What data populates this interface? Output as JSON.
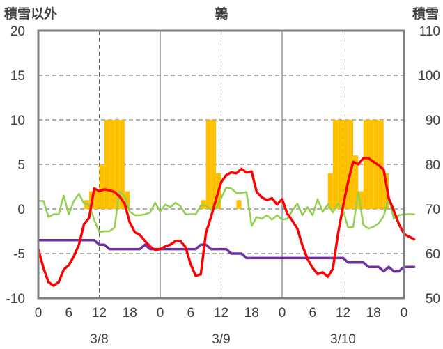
{
  "chart_data": {
    "type": "line",
    "title": "鶉",
    "ylabel_left": "積雪以外",
    "ylabel_right": "積雪",
    "y_left": {
      "min": -10,
      "max": 20,
      "ticks": [
        20,
        15,
        10,
        5,
        0,
        -5,
        -10
      ]
    },
    "y_right": {
      "min": 50,
      "max": 110,
      "ticks": [
        110,
        100,
        90,
        80,
        70,
        60,
        50
      ]
    },
    "x_hours": {
      "min": 0,
      "max": 72
    },
    "x_tick_labels": [
      "0",
      "6",
      "12",
      "18",
      "0",
      "6",
      "12",
      "18",
      "0",
      "6",
      "12",
      "18",
      "0"
    ],
    "day_labels": [
      "3/8",
      "3/9",
      "3/10"
    ],
    "grid": true,
    "colors": {
      "precip": "#FFC000",
      "temperature": "#FF0000",
      "wind": "#92D050",
      "snow_depth": "#7030A0",
      "axis": "#808080",
      "grid": "#606060"
    },
    "series": [
      {
        "kind": "bar",
        "values": [
          {
            "x": 9,
            "y": 1
          },
          {
            "x": 10,
            "y": 2
          },
          {
            "x": 11,
            "y": 2
          },
          {
            "x": 12,
            "y": 5
          },
          {
            "x": 13,
            "y": 10
          },
          {
            "x": 14,
            "y": 10
          },
          {
            "x": 15,
            "y": 10
          },
          {
            "x": 16,
            "y": 10
          },
          {
            "x": 17,
            "y": 2
          },
          {
            "x": 32,
            "y": 1
          },
          {
            "x": 33,
            "y": 10
          },
          {
            "x": 34,
            "y": 10
          },
          {
            "x": 35,
            "y": 4
          },
          {
            "x": 39,
            "y": 1
          },
          {
            "x": 57,
            "y": 4
          },
          {
            "x": 58,
            "y": 10
          },
          {
            "x": 59,
            "y": 10
          },
          {
            "x": 60,
            "y": 10
          },
          {
            "x": 61,
            "y": 10
          },
          {
            "x": 62,
            "y": 6
          },
          {
            "x": 63,
            "y": 2
          },
          {
            "x": 64,
            "y": 10
          },
          {
            "x": 65,
            "y": 10
          },
          {
            "x": 66,
            "y": 10
          },
          {
            "x": 67,
            "y": 10
          },
          {
            "x": 68,
            "y": 4
          }
        ]
      },
      {
        "kind": "line",
        "axis": "left",
        "values": [
          [
            0,
            -4.5
          ],
          [
            1,
            -6.6
          ],
          [
            2,
            -8.2
          ],
          [
            3,
            -8.6
          ],
          [
            4,
            -8.2
          ],
          [
            5,
            -6.8
          ],
          [
            6,
            -6.3
          ],
          [
            7,
            -5.3
          ],
          [
            8,
            -4
          ],
          [
            9,
            -1.7
          ],
          [
            10,
            -1
          ],
          [
            11,
            2.3
          ],
          [
            12,
            2
          ],
          [
            13,
            2.2
          ],
          [
            14,
            2.1
          ],
          [
            15,
            1.9
          ],
          [
            16,
            1.4
          ],
          [
            17,
            0.6
          ],
          [
            18,
            -1.5
          ],
          [
            19,
            -2.6
          ],
          [
            20,
            -2.9
          ],
          [
            21,
            -3.6
          ],
          [
            22,
            -4.2
          ],
          [
            23,
            -4.6
          ],
          [
            24,
            -4.5
          ],
          [
            25,
            -4.2
          ],
          [
            26,
            -4
          ],
          [
            27,
            -3.6
          ],
          [
            28,
            -3.6
          ],
          [
            29,
            -4.3
          ],
          [
            30,
            -6.2
          ],
          [
            31,
            -7.5
          ],
          [
            32,
            -7.3
          ],
          [
            33,
            -2.7
          ],
          [
            34,
            -0.9
          ],
          [
            35,
            1.1
          ],
          [
            36,
            3
          ],
          [
            37,
            3.8
          ],
          [
            38,
            4.1
          ],
          [
            39,
            4
          ],
          [
            40,
            4.5
          ],
          [
            41,
            4.1
          ],
          [
            42,
            4.2
          ],
          [
            43,
            1.9
          ],
          [
            44,
            1.3
          ],
          [
            45,
            1
          ],
          [
            46,
            1.2
          ],
          [
            47,
            0.5
          ],
          [
            48,
            1.1
          ],
          [
            49,
            -0.5
          ],
          [
            50,
            -1.3
          ],
          [
            51,
            -2.2
          ],
          [
            52,
            -4.1
          ],
          [
            53,
            -5.6
          ],
          [
            54,
            -6.6
          ],
          [
            55,
            -7.3
          ],
          [
            56,
            -7.1
          ],
          [
            57,
            -7.6
          ],
          [
            58,
            -6.7
          ],
          [
            59,
            -2.8
          ],
          [
            60,
            0.3
          ],
          [
            61,
            3.1
          ],
          [
            62,
            5.3
          ],
          [
            63,
            5
          ],
          [
            64,
            5.7
          ],
          [
            65,
            5.7
          ],
          [
            66,
            5.3
          ],
          [
            67,
            4.9
          ],
          [
            68,
            4.4
          ],
          [
            69,
            1.2
          ],
          [
            70,
            -0.2
          ],
          [
            71,
            -1.7
          ],
          [
            72,
            -2.8
          ],
          [
            73,
            -3.1
          ],
          [
            74,
            -3.4
          ]
        ]
      },
      {
        "kind": "line",
        "axis": "left",
        "values": [
          [
            0,
            0.9
          ],
          [
            1,
            0.9
          ],
          [
            2,
            -0.9
          ],
          [
            3,
            -0.6
          ],
          [
            4,
            -0.6
          ],
          [
            5,
            1.5
          ],
          [
            6,
            -0.6
          ],
          [
            7,
            0.9
          ],
          [
            8,
            1.7
          ],
          [
            9,
            0.6
          ],
          [
            10,
            0.5
          ],
          [
            11,
            -1.2
          ],
          [
            12,
            -2.6
          ],
          [
            13,
            -2.5
          ],
          [
            14,
            -2.5
          ],
          [
            15,
            -2.1
          ],
          [
            16,
            2
          ],
          [
            17,
            1.4
          ],
          [
            18,
            -0.3
          ],
          [
            19,
            -0.7
          ],
          [
            20,
            -0.7
          ],
          [
            21,
            -0.6
          ],
          [
            22,
            -0.4
          ],
          [
            23,
            0.7
          ],
          [
            24,
            -0.3
          ],
          [
            25,
            0.5
          ],
          [
            26,
            0.2
          ],
          [
            27,
            0.7
          ],
          [
            28,
            0.3
          ],
          [
            29,
            -0.6
          ],
          [
            30,
            -0.6
          ],
          [
            31,
            -0.6
          ],
          [
            32,
            0.4
          ],
          [
            33,
            0.4
          ],
          [
            34,
            -0.1
          ],
          [
            35,
            0.1
          ],
          [
            36,
            1.2
          ],
          [
            37,
            2.4
          ],
          [
            38,
            2.3
          ],
          [
            39,
            1.8
          ],
          [
            40,
            1.8
          ],
          [
            41,
            1.9
          ],
          [
            42,
            -1.9
          ],
          [
            43,
            -0.9
          ],
          [
            44,
            -1.1
          ],
          [
            45,
            -0.7
          ],
          [
            46,
            -1.2
          ],
          [
            47,
            -0.7
          ],
          [
            48,
            -1.2
          ],
          [
            49,
            -1.1
          ],
          [
            50,
            -0.2
          ],
          [
            51,
            0.6
          ],
          [
            52,
            -0.7
          ],
          [
            53,
            0.2
          ],
          [
            54,
            -0.7
          ],
          [
            55,
            1.1
          ],
          [
            56,
            -0.3
          ],
          [
            57,
            0.5
          ],
          [
            58,
            -0.4
          ],
          [
            59,
            0.6
          ],
          [
            60,
            -0.1
          ],
          [
            61,
            -2.1
          ],
          [
            62,
            -2
          ],
          [
            63,
            1.9
          ],
          [
            64,
            -1.8
          ],
          [
            65,
            -2.2
          ],
          [
            66,
            -2
          ],
          [
            67,
            -1.6
          ],
          [
            68,
            -0.8
          ],
          [
            69,
            1.3
          ],
          [
            70,
            -1.1
          ],
          [
            71,
            -0.7
          ],
          [
            72,
            -0.6
          ],
          [
            73,
            -0.6
          ],
          [
            74,
            -0.6
          ]
        ]
      },
      {
        "kind": "line",
        "axis": "right",
        "values": [
          [
            0,
            63
          ],
          [
            11,
            63
          ],
          [
            12,
            62
          ],
          [
            13,
            62
          ],
          [
            14,
            61
          ],
          [
            20,
            61
          ],
          [
            21,
            62
          ],
          [
            22,
            61
          ],
          [
            31,
            61
          ],
          [
            32,
            62
          ],
          [
            33,
            62
          ],
          [
            34,
            61
          ],
          [
            37,
            61
          ],
          [
            38,
            60
          ],
          [
            40,
            60
          ],
          [
            41,
            59
          ],
          [
            57,
            59
          ],
          [
            58,
            59
          ],
          [
            59,
            59
          ],
          [
            60,
            59
          ],
          [
            61,
            58
          ],
          [
            64,
            58
          ],
          [
            65,
            57
          ],
          [
            67,
            57
          ],
          [
            68,
            56
          ],
          [
            69,
            57
          ],
          [
            70,
            56
          ],
          [
            71,
            56
          ],
          [
            72,
            57
          ],
          [
            75,
            57
          ]
        ]
      }
    ]
  }
}
